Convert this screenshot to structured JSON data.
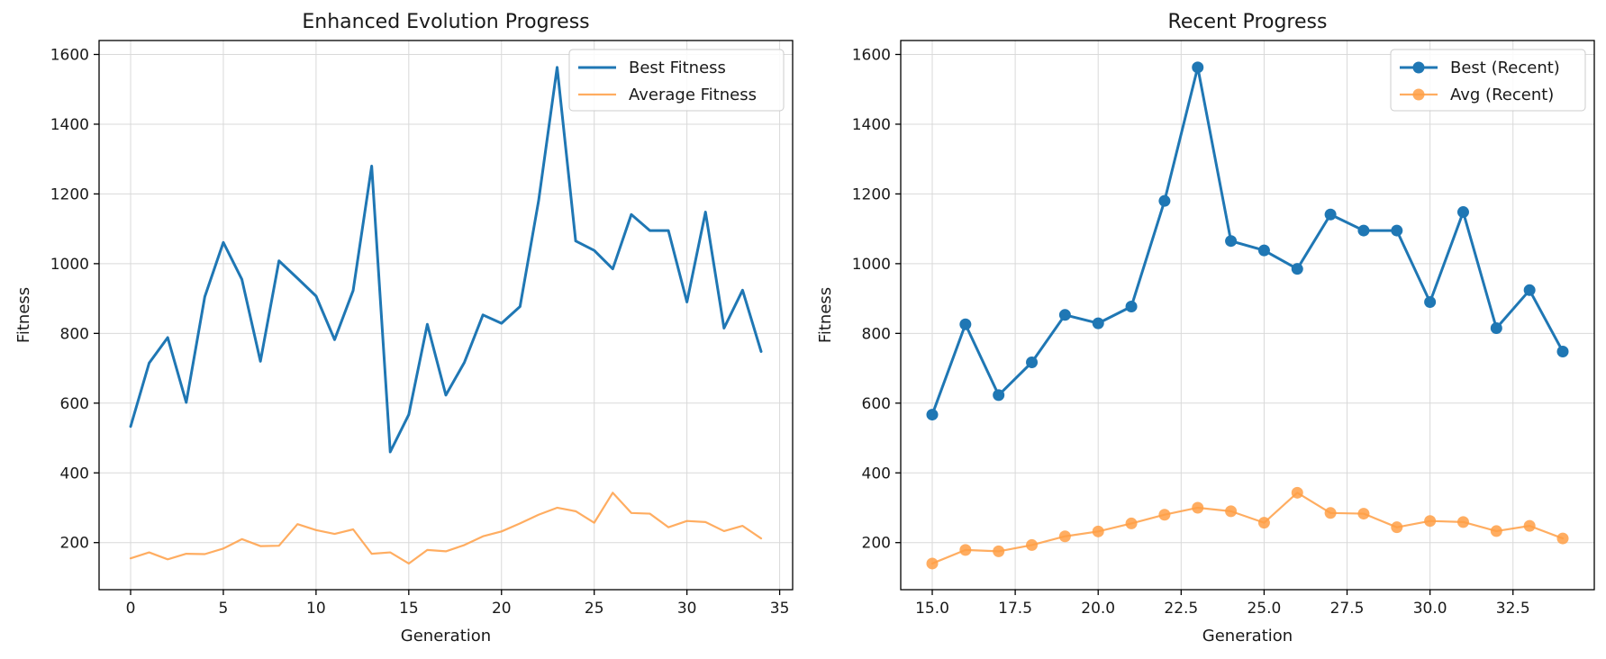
{
  "chart_data": [
    {
      "type": "line",
      "title": "Enhanced Evolution Progress",
      "xlabel": "Generation",
      "ylabel": "Fitness",
      "xlim": [
        -1.7,
        35.7
      ],
      "ylim": [
        65,
        1640
      ],
      "xticks": [
        0,
        5,
        10,
        15,
        20,
        25,
        30,
        35
      ],
      "xtick_labels": [
        "0",
        "5",
        "10",
        "15",
        "20",
        "25",
        "30",
        "35"
      ],
      "yticks": [
        200,
        400,
        600,
        800,
        1000,
        1200,
        1400,
        1600
      ],
      "ytick_labels": [
        "200",
        "400",
        "600",
        "800",
        "1000",
        "1200",
        "1400",
        "1600"
      ],
      "grid": true,
      "legend_position": "top-right",
      "x": [
        0,
        1,
        2,
        3,
        4,
        5,
        6,
        7,
        8,
        9,
        10,
        11,
        12,
        13,
        14,
        15,
        16,
        17,
        18,
        19,
        20,
        21,
        22,
        23,
        24,
        25,
        26,
        27,
        28,
        29,
        30,
        31,
        32,
        33,
        34
      ],
      "series": [
        {
          "name": "Best Fitness",
          "color": "#1f77b4",
          "markers": false,
          "values": [
            533,
            715,
            788,
            602,
            905,
            1061,
            955,
            720,
            1008,
            958,
            907,
            782,
            923,
            1280,
            460,
            567,
            826,
            623,
            717,
            853,
            829,
            877,
            1180,
            1563,
            1065,
            1038,
            985,
            1141,
            1095,
            1095,
            890,
            1148,
            815,
            924,
            748
          ]
        },
        {
          "name": "Average Fitness",
          "color": "#ff9f45",
          "markers": false,
          "values": [
            155,
            172,
            152,
            168,
            167,
            183,
            210,
            190,
            191,
            253,
            236,
            225,
            238,
            168,
            172,
            140,
            179,
            175,
            193,
            218,
            232,
            255,
            280,
            300,
            290,
            257,
            343,
            285,
            283,
            244,
            262,
            259,
            233,
            248,
            212
          ]
        }
      ]
    },
    {
      "type": "line",
      "title": "Recent Progress",
      "xlabel": "Generation",
      "ylabel": "Fitness",
      "xlim": [
        14.05,
        34.95
      ],
      "ylim": [
        65,
        1640
      ],
      "xticks": [
        15,
        17.5,
        20,
        22.5,
        25,
        27.5,
        30,
        32.5
      ],
      "xtick_labels": [
        "15.0",
        "17.5",
        "20.0",
        "22.5",
        "25.0",
        "27.5",
        "30.0",
        "32.5"
      ],
      "yticks": [
        200,
        400,
        600,
        800,
        1000,
        1200,
        1400,
        1600
      ],
      "ytick_labels": [
        "200",
        "400",
        "600",
        "800",
        "1000",
        "1200",
        "1400",
        "1600"
      ],
      "grid": true,
      "legend_position": "top-right",
      "x": [
        15,
        16,
        17,
        18,
        19,
        20,
        21,
        22,
        23,
        24,
        25,
        26,
        27,
        28,
        29,
        30,
        31,
        32,
        33,
        34
      ],
      "series": [
        {
          "name": "Best (Recent)",
          "color": "#1f77b4",
          "markers": true,
          "values": [
            567,
            826,
            623,
            717,
            853,
            829,
            877,
            1180,
            1563,
            1065,
            1038,
            985,
            1141,
            1095,
            1095,
            890,
            1148,
            815,
            924,
            748
          ]
        },
        {
          "name": "Avg (Recent)",
          "color": "#ff9f45",
          "markers": true,
          "values": [
            140,
            179,
            175,
            193,
            218,
            232,
            255,
            280,
            300,
            290,
            257,
            343,
            285,
            283,
            244,
            262,
            259,
            233,
            248,
            212
          ]
        }
      ]
    }
  ]
}
